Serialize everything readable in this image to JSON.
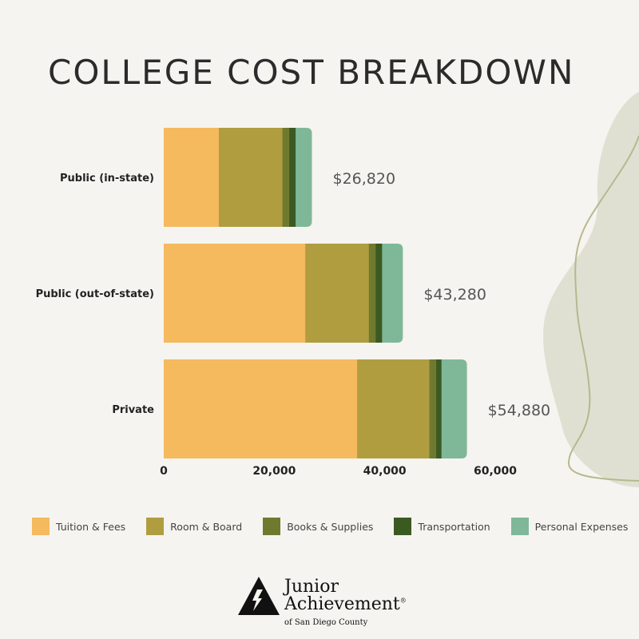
{
  "chart_data": {
    "type": "bar",
    "orientation": "horizontal",
    "stacked": true,
    "title": "COLLEGE COST BREAKDOWN",
    "categories": [
      "Public (in-state)",
      "Public (out-of-state)",
      "Private"
    ],
    "series": [
      {
        "name": "Tuition & Fees",
        "color": "#f5b95e",
        "values": [
          9970,
          25620,
          35010
        ]
      },
      {
        "name": "Room & Board",
        "color": "#b09d40",
        "values": [
          11510,
          11510,
          13070
        ]
      },
      {
        "name": "Books & Supplies",
        "color": "#6f7a2f",
        "values": [
          1240,
          1240,
          1240
        ]
      },
      {
        "name": "Transportation",
        "color": "#3a5a22",
        "values": [
          1150,
          1150,
          950
        ]
      },
      {
        "name": "Personal Expenses",
        "color": "#7fb898",
        "values": [
          2950,
          3760,
          4610
        ]
      }
    ],
    "totals": [
      "$26,820",
      "$43,280",
      "$54,880"
    ],
    "xticks": [
      0,
      20000,
      40000,
      60000
    ],
    "xtick_labels": [
      "0",
      "20,000",
      "40,000",
      "60,000"
    ],
    "xlim": [
      0,
      60000
    ],
    "grid": false,
    "legend_position": "bottom"
  },
  "logo": {
    "line1": "Junior",
    "line2": "Achievement",
    "registered": "®",
    "line3": "of San Diego County"
  },
  "colors": {
    "background": "#f6f4f0",
    "blob": "#e0e0d2",
    "curve": "#b5b98e"
  }
}
